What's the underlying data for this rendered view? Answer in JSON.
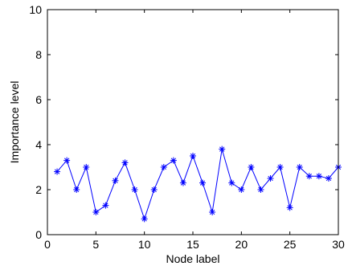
{
  "chart_data": {
    "type": "line",
    "title": "",
    "xlabel": "Node label",
    "ylabel": "Importance level",
    "xlim": [
      0,
      30
    ],
    "ylim": [
      0,
      10
    ],
    "xticks": [
      0,
      5,
      10,
      15,
      20,
      25,
      30
    ],
    "yticks": [
      0,
      2,
      4,
      6,
      8,
      10
    ],
    "grid": false,
    "marker": "asterisk",
    "line_color": "#0000ff",
    "series": [
      {
        "x": [
          1,
          2,
          3,
          4,
          5,
          6,
          7,
          8,
          9,
          10,
          11,
          12,
          13,
          14,
          15,
          16,
          17,
          18,
          19,
          20,
          21,
          22,
          23,
          24,
          25,
          26,
          27,
          28,
          29,
          30
        ],
        "values": [
          2.8,
          3.3,
          2.0,
          3.0,
          1.0,
          1.3,
          2.4,
          3.2,
          2.0,
          0.7,
          2.0,
          3.0,
          3.3,
          2.3,
          3.5,
          2.3,
          1.0,
          3.8,
          2.3,
          2.0,
          3.0,
          2.0,
          2.5,
          3.0,
          1.2,
          3.0,
          2.6,
          2.6,
          2.5,
          3.0
        ]
      }
    ]
  }
}
